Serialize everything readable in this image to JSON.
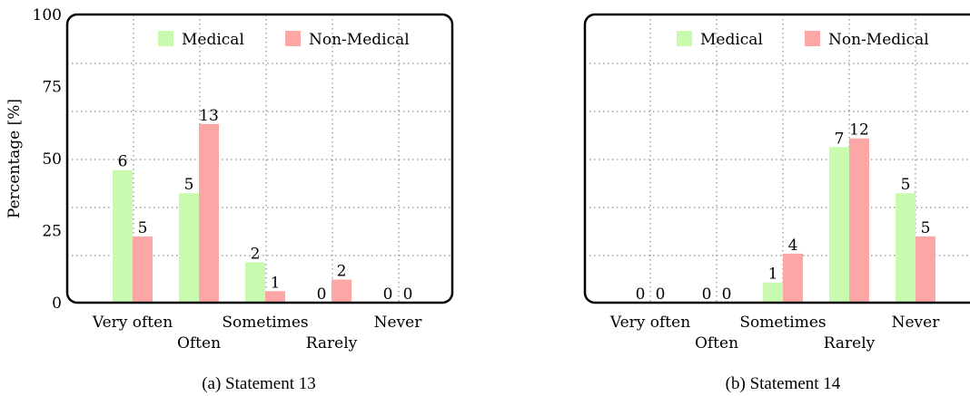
{
  "legend": {
    "medical_label": "Medical",
    "nonmedical_label": "Non-Medical"
  },
  "colors": {
    "medical": "#c8fbb0",
    "nonmedical": "#fca6a6",
    "frame": "#000000",
    "grid": "#8c8c8c"
  },
  "chart_data": [
    {
      "type": "bar",
      "caption": "(a)  Statement 13",
      "ylabel": "Percentage [%]",
      "ylim": [
        0,
        100
      ],
      "yticks": [
        0,
        25,
        50,
        75,
        100
      ],
      "categories": [
        "Very often",
        "Often",
        "Sometimes",
        "Rarely",
        "Never"
      ],
      "series": [
        {
          "name": "Medical",
          "values": [
            46,
            38,
            14,
            0,
            0
          ],
          "labels": [
            "6",
            "5",
            "2",
            "0",
            "0"
          ]
        },
        {
          "name": "Non-Medical",
          "values": [
            23,
            62,
            4,
            8,
            0
          ],
          "labels": [
            "5",
            "13",
            "1",
            "2",
            "0"
          ]
        }
      ],
      "grid": true,
      "legend_position": "top-right"
    },
    {
      "type": "bar",
      "caption": "(b)  Statement 14",
      "ylabel": "",
      "ylim": [
        0,
        100
      ],
      "yticks": [],
      "categories": [
        "Very often",
        "Often",
        "Sometimes",
        "Rarely",
        "Never"
      ],
      "series": [
        {
          "name": "Medical",
          "values": [
            0,
            0,
            7,
            54,
            38
          ],
          "labels": [
            "0",
            "0",
            "1",
            "7",
            "5"
          ]
        },
        {
          "name": "Non-Medical",
          "values": [
            0,
            0,
            17,
            57,
            23
          ],
          "labels": [
            "0",
            "0",
            "4",
            "12",
            "5"
          ]
        }
      ],
      "grid": true,
      "legend_position": "top-right"
    }
  ]
}
